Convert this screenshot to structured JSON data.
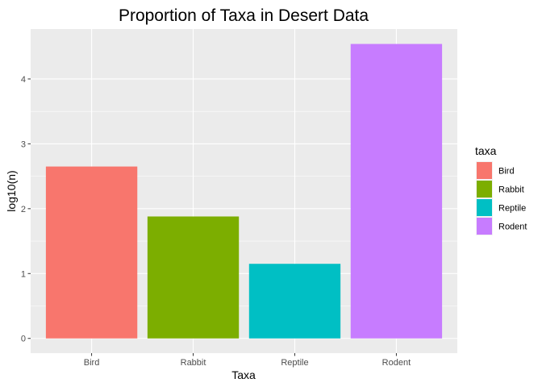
{
  "chart_data": {
    "type": "bar",
    "title": "Proportion of Taxa in Desert Data",
    "xlabel": "Taxa",
    "ylabel": "log10(n)",
    "categories": [
      "Bird",
      "Rabbit",
      "Reptile",
      "Rodent"
    ],
    "values": [
      2.65,
      1.88,
      1.15,
      4.54
    ],
    "ylim": [
      -0.227,
      4.77
    ],
    "yticks": [
      "0",
      "1",
      "2",
      "3",
      "4"
    ],
    "grid": true,
    "legend": {
      "title": "taxa",
      "placement": "right",
      "entries": [
        "Bird",
        "Rabbit",
        "Reptile",
        "Rodent"
      ]
    },
    "colors": [
      "#F8766D",
      "#7CAE00",
      "#00BFC4",
      "#C77CFF"
    ],
    "panel_color": "#EBEBEB",
    "grid_color": "#FFFFFF"
  }
}
